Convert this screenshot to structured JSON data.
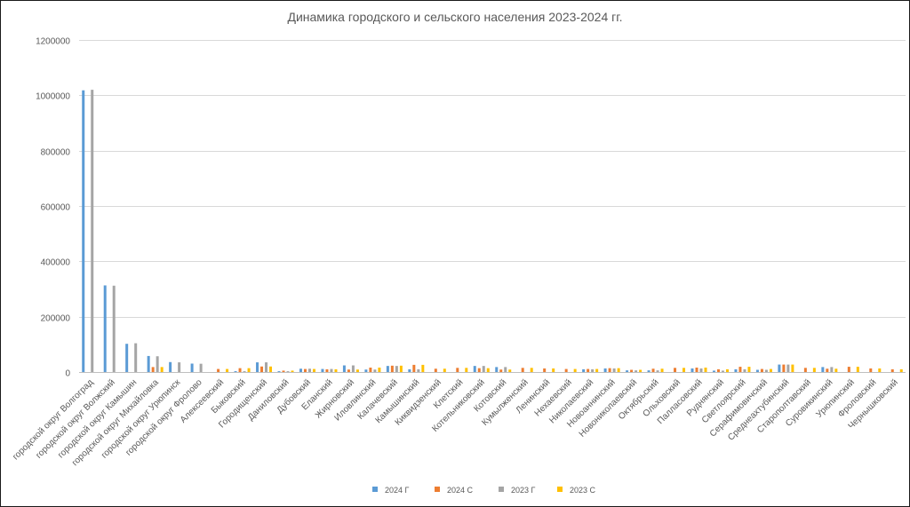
{
  "chart_data": {
    "type": "bar",
    "title": "Динамика городского и сельского населения 2023-2024 гг.",
    "ylim": [
      0,
      1200000
    ],
    "yticks": [
      0,
      200000,
      400000,
      600000,
      800000,
      1000000,
      1200000
    ],
    "grid": true,
    "legend_position": "bottom",
    "categories": [
      "городской округ Волгоград",
      "городской округ Волжский",
      "городской округ Камышин",
      "городской округ Михайловка",
      "городской округ Урюпинск",
      "городской округ Фролово",
      "Алексеевский",
      "Быковский",
      "Городищенский",
      "Даниловский",
      "Дубовский",
      "Еланский",
      "Жирновский",
      "Иловлинский",
      "Калачевский",
      "Камышинский",
      "Киквидзенский",
      "Клетский",
      "Котельниковский",
      "Котовский",
      "Кумылженский",
      "Ленинский",
      "Нехаевский",
      "Николаевский",
      "Новоаннинский",
      "Новониколаевский",
      "Октябрьский",
      "Ольховский",
      "Палласовский",
      "Руднянский",
      "Светлоярский",
      "Серафимовичский",
      "Среднеахтубинский",
      "Старополтавский",
      "Суровикинский",
      "Урюпинский",
      "Фроловский",
      "Чернышковский"
    ],
    "series": [
      {
        "name": "2024 Г",
        "color": "#5b9bd5",
        "values": [
          1018000,
          313000,
          102000,
          58000,
          36000,
          30500,
          0,
          3000,
          35000,
          3000,
          12000,
          11000,
          24000,
          9000,
          22000,
          10000,
          0,
          0,
          22000,
          18000,
          0,
          0,
          0,
          10000,
          13000,
          6000,
          6000,
          0,
          13000,
          5000,
          10000,
          8000,
          27000,
          0,
          18000,
          0,
          0,
          0
        ]
      },
      {
        "name": "2024 С",
        "color": "#ed7d31",
        "values": [
          0,
          0,
          0,
          18000,
          0,
          0,
          11000,
          14000,
          20000,
          5000,
          11000,
          10000,
          9000,
          16000,
          23000,
          26000,
          12000,
          15000,
          14000,
          9000,
          15000,
          13000,
          11000,
          11000,
          14000,
          8000,
          12000,
          15000,
          16000,
          10000,
          19000,
          11000,
          27000,
          15000,
          12000,
          19000,
          13000,
          10000
        ]
      },
      {
        "name": "2023 Г",
        "color": "#a5a5a5",
        "values": [
          1020000,
          312000,
          104000,
          57000,
          35000,
          30000,
          0,
          3000,
          35000,
          3000,
          12000,
          11000,
          24000,
          9000,
          22000,
          10000,
          0,
          0,
          22000,
          18000,
          0,
          0,
          0,
          10000,
          13000,
          6000,
          6000,
          0,
          13000,
          5000,
          10000,
          8000,
          27000,
          0,
          18000,
          0,
          0,
          0
        ]
      },
      {
        "name": "2023 С",
        "color": "#ffc000",
        "values": [
          0,
          0,
          0,
          18000,
          0,
          0,
          11000,
          14000,
          20000,
          5000,
          11000,
          10000,
          9000,
          16000,
          23000,
          26000,
          12000,
          15000,
          14000,
          9000,
          15000,
          13000,
          11000,
          11000,
          14000,
          8000,
          12000,
          15000,
          16000,
          10000,
          19000,
          11000,
          27000,
          15000,
          12000,
          19000,
          13000,
          10000
        ]
      }
    ]
  }
}
